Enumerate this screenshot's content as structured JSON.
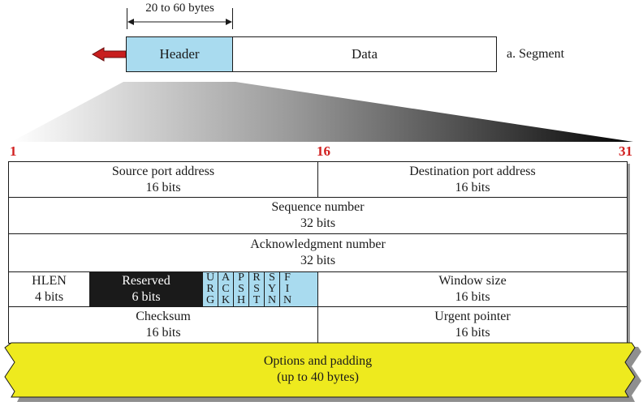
{
  "segment": {
    "size_label": "20 to 60 bytes",
    "header_label": "Header",
    "data_label": "Data",
    "caption": "a. Segment"
  },
  "bit_positions": {
    "start": "1",
    "middle": "16",
    "end": "31"
  },
  "fields": {
    "source_port": {
      "name": "Source port address",
      "size": "16 bits"
    },
    "destination_port": {
      "name": "Destination port address",
      "size": "16 bits"
    },
    "sequence_number": {
      "name": "Sequence number",
      "size": "32 bits"
    },
    "acknowledgment_number": {
      "name": "Acknowledgment number",
      "size": "32 bits"
    },
    "hlen": {
      "name": "HLEN",
      "size": "4 bits"
    },
    "reserved": {
      "name": "Reserved",
      "size": "6 bits"
    },
    "flags": [
      {
        "letters": [
          "U",
          "R",
          "G"
        ]
      },
      {
        "letters": [
          "A",
          "C",
          "K"
        ]
      },
      {
        "letters": [
          "P",
          "S",
          "H"
        ]
      },
      {
        "letters": [
          "R",
          "S",
          "T"
        ]
      },
      {
        "letters": [
          "S",
          "Y",
          "N"
        ]
      },
      {
        "letters": [
          "F",
          "I",
          "N"
        ]
      }
    ],
    "window_size": {
      "name": "Window size",
      "size": "16 bits"
    },
    "checksum": {
      "name": "Checksum",
      "size": "16 bits"
    },
    "urgent_pointer": {
      "name": "Urgent pointer",
      "size": "16 bits"
    },
    "options": {
      "name": "Options and padding",
      "size": "(up to 40 bytes)"
    }
  },
  "colors": {
    "header_fill": "#a9dbef",
    "flag_fill": "#a9dbef",
    "reserved_fill": "#1a1a1a",
    "options_fill": "#eeea1e",
    "bit_number_color": "#d11f1f",
    "arrow_color": "#c81e1e"
  }
}
